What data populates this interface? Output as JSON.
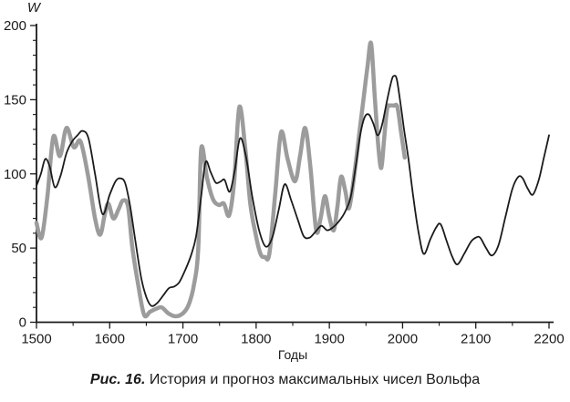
{
  "figure": {
    "y_axis_title": "W",
    "x_axis_title": "Годы",
    "caption_label": "Рис. 16.",
    "caption_text": " История и прогноз максимальных чисел Вольфа"
  },
  "chart_data": {
    "type": "line",
    "title": "История и прогноз максимальных чисел Вольфа",
    "xlabel": "Годы",
    "ylabel": "W",
    "xlim": [
      1500,
      2200
    ],
    "ylim": [
      0,
      200
    ],
    "x_major_ticks": [
      1500,
      1600,
      1700,
      1800,
      1900,
      2000,
      2100,
      2200
    ],
    "x_minor_step": 50,
    "y_major_ticks": [
      0,
      50,
      100,
      150,
      200
    ],
    "y_minor_step": 10,
    "grid": false,
    "legend_position": "none",
    "axis_color": "#1a1a1a",
    "series": [
      {
        "name": "observed-wolf-maxima",
        "color": "#9c9c9c",
        "width": 4.5,
        "points": [
          [
            1500,
            67
          ],
          [
            1507,
            57
          ],
          [
            1515,
            85
          ],
          [
            1523,
            125
          ],
          [
            1532,
            112
          ],
          [
            1541,
            131
          ],
          [
            1551,
            118
          ],
          [
            1560,
            122
          ],
          [
            1570,
            100
          ],
          [
            1580,
            70
          ],
          [
            1587,
            59
          ],
          [
            1593,
            72
          ],
          [
            1598,
            80
          ],
          [
            1605,
            70
          ],
          [
            1612,
            76
          ],
          [
            1618,
            82
          ],
          [
            1625,
            78
          ],
          [
            1631,
            50
          ],
          [
            1639,
            25
          ],
          [
            1647,
            5
          ],
          [
            1655,
            7
          ],
          [
            1663,
            9
          ],
          [
            1671,
            10
          ],
          [
            1680,
            6
          ],
          [
            1690,
            4
          ],
          [
            1700,
            6
          ],
          [
            1708,
            12
          ],
          [
            1715,
            25
          ],
          [
            1721,
            50
          ],
          [
            1725,
            117
          ],
          [
            1733,
            97
          ],
          [
            1741,
            83
          ],
          [
            1749,
            79
          ],
          [
            1756,
            80
          ],
          [
            1763,
            72
          ],
          [
            1770,
            95
          ],
          [
            1777,
            145
          ],
          [
            1785,
            118
          ],
          [
            1792,
            80
          ],
          [
            1799,
            60
          ],
          [
            1806,
            46
          ],
          [
            1812,
            44
          ],
          [
            1818,
            46
          ],
          [
            1826,
            86
          ],
          [
            1834,
            128
          ],
          [
            1843,
            110
          ],
          [
            1853,
            95
          ],
          [
            1860,
            112
          ],
          [
            1867,
            131
          ],
          [
            1874,
            105
          ],
          [
            1882,
            62
          ],
          [
            1888,
            70
          ],
          [
            1894,
            85
          ],
          [
            1900,
            71
          ],
          [
            1906,
            62
          ],
          [
            1911,
            78
          ],
          [
            1916,
            98
          ],
          [
            1922,
            88
          ],
          [
            1927,
            77
          ],
          [
            1935,
            103
          ],
          [
            1941,
            128
          ],
          [
            1947,
            152
          ],
          [
            1952,
            172
          ],
          [
            1957,
            188
          ],
          [
            1962,
            152
          ],
          [
            1967,
            118
          ],
          [
            1971,
            104
          ],
          [
            1975,
            125
          ],
          [
            1979,
            144
          ],
          [
            1983,
            146
          ],
          [
            1988,
            146
          ],
          [
            1993,
            145
          ],
          [
            1998,
            128
          ],
          [
            2003,
            111
          ]
        ]
      },
      {
        "name": "model-history-forecast",
        "color": "#1b1b1b",
        "width": 1.8,
        "points": [
          [
            1500,
            92
          ],
          [
            1506,
            100
          ],
          [
            1512,
            110
          ],
          [
            1518,
            105
          ],
          [
            1525,
            91
          ],
          [
            1533,
            99
          ],
          [
            1541,
            114
          ],
          [
            1549,
            122
          ],
          [
            1556,
            126
          ],
          [
            1563,
            129
          ],
          [
            1571,
            124
          ],
          [
            1580,
            100
          ],
          [
            1590,
            73
          ],
          [
            1600,
            86
          ],
          [
            1608,
            95
          ],
          [
            1614,
            97
          ],
          [
            1621,
            94
          ],
          [
            1628,
            78
          ],
          [
            1635,
            55
          ],
          [
            1643,
            30
          ],
          [
            1650,
            17
          ],
          [
            1657,
            11
          ],
          [
            1665,
            13
          ],
          [
            1673,
            18
          ],
          [
            1681,
            23
          ],
          [
            1688,
            24
          ],
          [
            1695,
            27
          ],
          [
            1703,
            35
          ],
          [
            1711,
            45
          ],
          [
            1718,
            58
          ],
          [
            1725,
            85
          ],
          [
            1731,
            108
          ],
          [
            1738,
            101
          ],
          [
            1745,
            94
          ],
          [
            1752,
            95
          ],
          [
            1757,
            96
          ],
          [
            1764,
            88
          ],
          [
            1771,
            103
          ],
          [
            1778,
            124
          ],
          [
            1786,
            112
          ],
          [
            1795,
            84
          ],
          [
            1804,
            62
          ],
          [
            1813,
            51
          ],
          [
            1822,
            57
          ],
          [
            1831,
            76
          ],
          [
            1839,
            93
          ],
          [
            1848,
            82
          ],
          [
            1857,
            69
          ],
          [
            1865,
            58
          ],
          [
            1873,
            57
          ],
          [
            1881,
            61
          ],
          [
            1889,
            65
          ],
          [
            1897,
            62
          ],
          [
            1905,
            64
          ],
          [
            1913,
            68
          ],
          [
            1921,
            74
          ],
          [
            1929,
            84
          ],
          [
            1936,
            105
          ],
          [
            1942,
            126
          ],
          [
            1948,
            138
          ],
          [
            1954,
            140
          ],
          [
            1960,
            134
          ],
          [
            1966,
            126
          ],
          [
            1972,
            133
          ],
          [
            1979,
            150
          ],
          [
            1985,
            163
          ],
          [
            1988,
            166
          ],
          [
            1992,
            164
          ],
          [
            1997,
            148
          ],
          [
            2002,
            130
          ],
          [
            2008,
            110
          ],
          [
            2015,
            83
          ],
          [
            2022,
            60
          ],
          [
            2029,
            46
          ],
          [
            2038,
            56
          ],
          [
            2046,
            64
          ],
          [
            2052,
            66
          ],
          [
            2060,
            55
          ],
          [
            2068,
            44
          ],
          [
            2075,
            39
          ],
          [
            2084,
            46
          ],
          [
            2093,
            54
          ],
          [
            2100,
            57
          ],
          [
            2106,
            57
          ],
          [
            2114,
            50
          ],
          [
            2122,
            45
          ],
          [
            2131,
            52
          ],
          [
            2140,
            70
          ],
          [
            2150,
            90
          ],
          [
            2158,
            98
          ],
          [
            2164,
            97
          ],
          [
            2171,
            90
          ],
          [
            2178,
            86
          ],
          [
            2186,
            96
          ],
          [
            2193,
            111
          ],
          [
            2200,
            126
          ]
        ]
      }
    ]
  }
}
